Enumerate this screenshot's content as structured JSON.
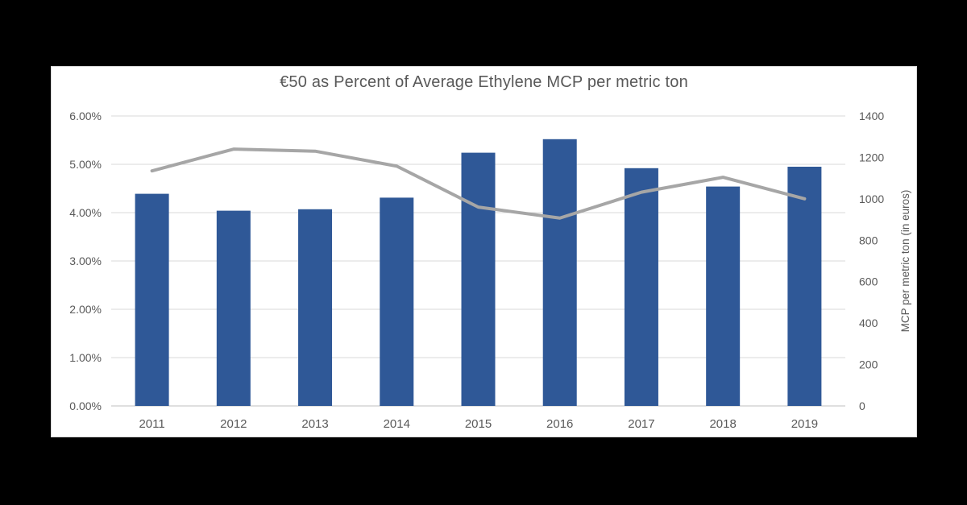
{
  "colors": {
    "background": "#000000",
    "panel_background": "#ffffff",
    "panel_border": "#d9d9d9",
    "bar_fill": "#2f5897",
    "line_stroke": "#a6a6a6",
    "gridline": "#d9d9d9",
    "axis_line": "#bfbfbf",
    "text": "#595959"
  },
  "chart_data": {
    "type": "combo",
    "title": "€50 as Percent of Average Ethylene MCP per metric ton",
    "categories": [
      "2011",
      "2012",
      "2013",
      "2014",
      "2015",
      "2016",
      "2017",
      "2018",
      "2019"
    ],
    "series": [
      {
        "type": "bar",
        "axis": "left",
        "unit": "percent",
        "values": [
          4.39,
          4.04,
          4.07,
          4.31,
          5.24,
          5.52,
          4.92,
          4.54,
          4.95
        ]
      },
      {
        "type": "line",
        "axis": "right",
        "unit": "euros per metric ton",
        "values": [
          1135,
          1240,
          1230,
          1158,
          960,
          907,
          1032,
          1104,
          1000
        ]
      }
    ],
    "left_axis": {
      "min": 0,
      "max": 6,
      "step": 1,
      "tick_labels": [
        "6.00%",
        "5.00%",
        "4.00%",
        "3.00%",
        "2.00%",
        "1.00%",
        "0.00%"
      ]
    },
    "right_axis": {
      "min": 0,
      "max": 1400,
      "step": 200,
      "title": "MCP per metric ton (in euros)",
      "tick_labels": [
        "1400",
        "1200",
        "1000",
        "800",
        "600",
        "400",
        "200",
        "0"
      ]
    },
    "grid": true,
    "legend": "none"
  }
}
